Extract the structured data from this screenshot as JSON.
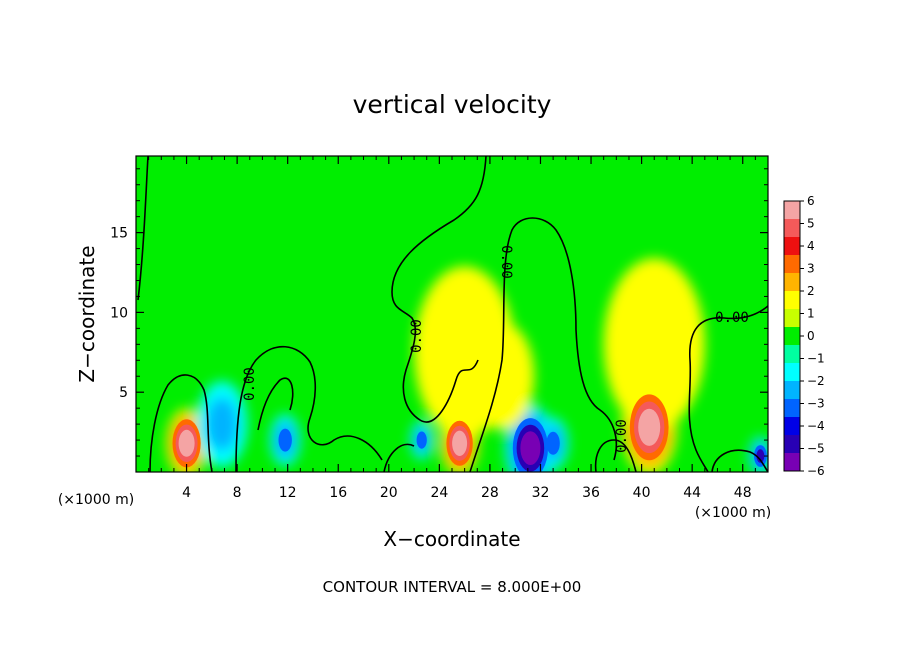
{
  "chart_data": {
    "type": "heatmap",
    "title": "vertical velocity",
    "xlabel": "X−coordinate",
    "ylabel": "Z−coordinate",
    "x_unit": "(×1000 m)",
    "x_unit_right": "(×1000 m)",
    "contour_interval_text": "CONTOUR INTERVAL = 8.000E+00",
    "contour_labels": [
      "0.00",
      "0.00",
      "0.00",
      "0.00",
      "0.00"
    ],
    "xlim": [
      0,
      50
    ],
    "ylim": [
      0,
      19.8
    ],
    "x_ticks": [
      4,
      8,
      12,
      16,
      20,
      24,
      28,
      32,
      36,
      40,
      44,
      48
    ],
    "x_tick_labels": [
      "4",
      "8",
      "12",
      "16",
      "20",
      "24",
      "28",
      "32",
      "36",
      "40",
      "44",
      "48"
    ],
    "y_ticks": [
      5,
      10,
      15
    ],
    "y_tick_labels": [
      "5",
      "10",
      "15"
    ],
    "colorbar_ticks": [
      6,
      5,
      4,
      3,
      2,
      1,
      0,
      -1,
      -2,
      -3,
      -4,
      -5,
      -6
    ],
    "colorbar_tick_labels": [
      "6",
      "5",
      "4",
      "3",
      "2",
      "1",
      "0",
      "−1",
      "−2",
      "−3",
      "−4",
      "−5",
      "−6"
    ],
    "colorbar_colors": [
      "#f4a4a4",
      "#f45a5a",
      "#ee1010",
      "#ff6a00",
      "#ffb400",
      "#ffff00",
      "#c8ff00",
      "#00ee00",
      "#00ffa0",
      "#00ffff",
      "#00b4ff",
      "#0064ff",
      "#0000e6",
      "#2800b4",
      "#7800b4"
    ],
    "background_color": "#00ee00",
    "features": [
      {
        "x": 4.0,
        "z": 1.8,
        "w": 1.6,
        "value": 5.5
      },
      {
        "x": 25.6,
        "z": 1.8,
        "w": 1.5,
        "value": 5.8
      },
      {
        "x": 40.6,
        "z": 2.8,
        "w": 2.2,
        "value": 6.3
      },
      {
        "x": 31.2,
        "z": 1.5,
        "w": 2.0,
        "value": -5.8
      },
      {
        "x": 22.6,
        "z": 2.0,
        "w": 0.9,
        "value": -3.2
      },
      {
        "x": 11.8,
        "z": 2.0,
        "w": 1.2,
        "value": -3.0
      },
      {
        "x": 49.4,
        "z": 1.0,
        "w": 0.9,
        "value": -3.6
      },
      {
        "x": 33.0,
        "z": 1.8,
        "w": 1.2,
        "value": -3.0
      },
      {
        "x": 6.8,
        "z": 3.0,
        "w": 2.0,
        "value": -2.2
      },
      {
        "x": 26.0,
        "z": 7.5,
        "w": 4.0,
        "value": 1.2
      },
      {
        "x": 29.0,
        "z": 6.0,
        "w": 2.5,
        "value": 0.9
      },
      {
        "x": 41.0,
        "z": 8.0,
        "w": 4.0,
        "value": 1.0
      }
    ]
  }
}
